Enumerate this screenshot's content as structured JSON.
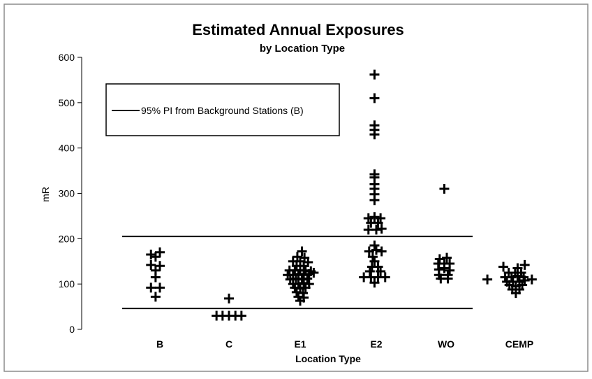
{
  "chart_data": {
    "type": "scatter",
    "title": "Estimated Annual Exposures",
    "subtitle": "by Location Type",
    "xlabel": "Location Type",
    "ylabel": "mR",
    "ylim": [
      0,
      600
    ],
    "yticks": [
      0,
      100,
      200,
      300,
      400,
      500,
      600
    ],
    "categories": [
      "B",
      "C",
      "E1",
      "E2",
      "WO",
      "CEMP"
    ],
    "grid": false,
    "marker": "plus",
    "legend": {
      "position": "top-left",
      "entries": [
        "95% PI from Background Stations (B)"
      ]
    },
    "reference_lines": [
      {
        "name": "95% PI from Background Stations (B)",
        "values": [
          46,
          205
        ]
      }
    ],
    "series": [
      {
        "category": "B",
        "points": [
          {
            "offset": -0.25,
            "y": 165
          },
          {
            "offset": 0.0,
            "y": 170
          },
          {
            "offset": -0.12,
            "y": 160
          },
          {
            "offset": -0.25,
            "y": 142
          },
          {
            "offset": 0.0,
            "y": 140
          },
          {
            "offset": -0.12,
            "y": 130
          },
          {
            "offset": -0.12,
            "y": 115
          },
          {
            "offset": -0.25,
            "y": 92
          },
          {
            "offset": 0.0,
            "y": 92
          },
          {
            "offset": -0.12,
            "y": 72
          }
        ]
      },
      {
        "category": "C",
        "points": [
          {
            "offset": 0.0,
            "y": 68
          },
          {
            "offset": -0.35,
            "y": 30
          },
          {
            "offset": -0.18,
            "y": 30
          },
          {
            "offset": 0.0,
            "y": 30
          },
          {
            "offset": 0.18,
            "y": 30
          },
          {
            "offset": 0.35,
            "y": 30
          }
        ]
      },
      {
        "category": "E1",
        "points": [
          {
            "offset": 0.05,
            "y": 172
          },
          {
            "offset": -0.08,
            "y": 160
          },
          {
            "offset": 0.12,
            "y": 158
          },
          {
            "offset": -0.2,
            "y": 150
          },
          {
            "offset": 0.0,
            "y": 150
          },
          {
            "offset": 0.22,
            "y": 148
          },
          {
            "offset": -0.1,
            "y": 140
          },
          {
            "offset": 0.1,
            "y": 140
          },
          {
            "offset": -0.3,
            "y": 130
          },
          {
            "offset": -0.15,
            "y": 130
          },
          {
            "offset": 0.0,
            "y": 130
          },
          {
            "offset": 0.15,
            "y": 130
          },
          {
            "offset": 0.3,
            "y": 128
          },
          {
            "offset": -0.35,
            "y": 120
          },
          {
            "offset": -0.2,
            "y": 120
          },
          {
            "offset": -0.05,
            "y": 122
          },
          {
            "offset": 0.1,
            "y": 120
          },
          {
            "offset": 0.25,
            "y": 122
          },
          {
            "offset": 0.38,
            "y": 125
          },
          {
            "offset": -0.28,
            "y": 110
          },
          {
            "offset": -0.12,
            "y": 112
          },
          {
            "offset": 0.05,
            "y": 110
          },
          {
            "offset": 0.2,
            "y": 112
          },
          {
            "offset": -0.2,
            "y": 100
          },
          {
            "offset": -0.05,
            "y": 100
          },
          {
            "offset": 0.1,
            "y": 102
          },
          {
            "offset": 0.25,
            "y": 100
          },
          {
            "offset": -0.15,
            "y": 92
          },
          {
            "offset": 0.0,
            "y": 90
          },
          {
            "offset": 0.15,
            "y": 92
          },
          {
            "offset": -0.1,
            "y": 82
          },
          {
            "offset": 0.08,
            "y": 80
          },
          {
            "offset": -0.05,
            "y": 72
          },
          {
            "offset": 0.1,
            "y": 70
          },
          {
            "offset": 0.0,
            "y": 63
          }
        ]
      },
      {
        "category": "E2",
        "points": [
          {
            "offset": -0.05,
            "y": 562
          },
          {
            "offset": -0.05,
            "y": 510
          },
          {
            "offset": -0.05,
            "y": 450
          },
          {
            "offset": -0.05,
            "y": 440
          },
          {
            "offset": -0.05,
            "y": 430
          },
          {
            "offset": -0.05,
            "y": 342
          },
          {
            "offset": -0.05,
            "y": 335
          },
          {
            "offset": -0.05,
            "y": 320
          },
          {
            "offset": -0.05,
            "y": 310
          },
          {
            "offset": -0.05,
            "y": 298
          },
          {
            "offset": -0.05,
            "y": 285
          },
          {
            "offset": -0.22,
            "y": 245
          },
          {
            "offset": -0.05,
            "y": 248
          },
          {
            "offset": 0.12,
            "y": 245
          },
          {
            "offset": -0.15,
            "y": 235
          },
          {
            "offset": 0.05,
            "y": 235
          },
          {
            "offset": -0.22,
            "y": 220
          },
          {
            "offset": 0.0,
            "y": 220
          },
          {
            "offset": 0.15,
            "y": 222
          },
          {
            "offset": -0.05,
            "y": 185
          },
          {
            "offset": -0.2,
            "y": 172
          },
          {
            "offset": 0.0,
            "y": 175
          },
          {
            "offset": 0.15,
            "y": 172
          },
          {
            "offset": -0.1,
            "y": 160
          },
          {
            "offset": -0.05,
            "y": 150
          },
          {
            "offset": -0.12,
            "y": 138
          },
          {
            "offset": 0.05,
            "y": 138
          },
          {
            "offset": -0.18,
            "y": 128
          },
          {
            "offset": 0.12,
            "y": 128
          },
          {
            "offset": -0.35,
            "y": 115
          },
          {
            "offset": -0.15,
            "y": 115
          },
          {
            "offset": 0.05,
            "y": 115
          },
          {
            "offset": 0.25,
            "y": 115
          },
          {
            "offset": -0.05,
            "y": 103
          }
        ]
      },
      {
        "category": "WO",
        "points": [
          {
            "offset": -0.05,
            "y": 310
          },
          {
            "offset": -0.18,
            "y": 155
          },
          {
            "offset": 0.02,
            "y": 158
          },
          {
            "offset": -0.22,
            "y": 145
          },
          {
            "offset": -0.05,
            "y": 145
          },
          {
            "offset": 0.1,
            "y": 145
          },
          {
            "offset": -0.2,
            "y": 132
          },
          {
            "offset": -0.05,
            "y": 135
          },
          {
            "offset": 0.1,
            "y": 130
          },
          {
            "offset": -0.2,
            "y": 120
          },
          {
            "offset": 0.05,
            "y": 120
          },
          {
            "offset": -0.15,
            "y": 112
          },
          {
            "offset": 0.05,
            "y": 112
          }
        ]
      },
      {
        "category": "CEMP",
        "points": [
          {
            "offset": -0.9,
            "y": 110
          },
          {
            "offset": 0.35,
            "y": 110
          },
          {
            "offset": -0.45,
            "y": 138
          },
          {
            "offset": -0.05,
            "y": 135
          },
          {
            "offset": 0.15,
            "y": 142
          },
          {
            "offset": -0.3,
            "y": 125
          },
          {
            "offset": -0.12,
            "y": 125
          },
          {
            "offset": 0.05,
            "y": 125
          },
          {
            "offset": -0.4,
            "y": 115
          },
          {
            "offset": -0.22,
            "y": 115
          },
          {
            "offset": -0.05,
            "y": 118
          },
          {
            "offset": 0.12,
            "y": 115
          },
          {
            "offset": -0.35,
            "y": 105
          },
          {
            "offset": -0.18,
            "y": 105
          },
          {
            "offset": 0.0,
            "y": 105
          },
          {
            "offset": 0.15,
            "y": 108
          },
          {
            "offset": -0.28,
            "y": 98
          },
          {
            "offset": -0.1,
            "y": 95
          },
          {
            "offset": 0.08,
            "y": 98
          },
          {
            "offset": -0.2,
            "y": 88
          },
          {
            "offset": 0.0,
            "y": 88
          },
          {
            "offset": -0.1,
            "y": 80
          }
        ]
      }
    ]
  }
}
